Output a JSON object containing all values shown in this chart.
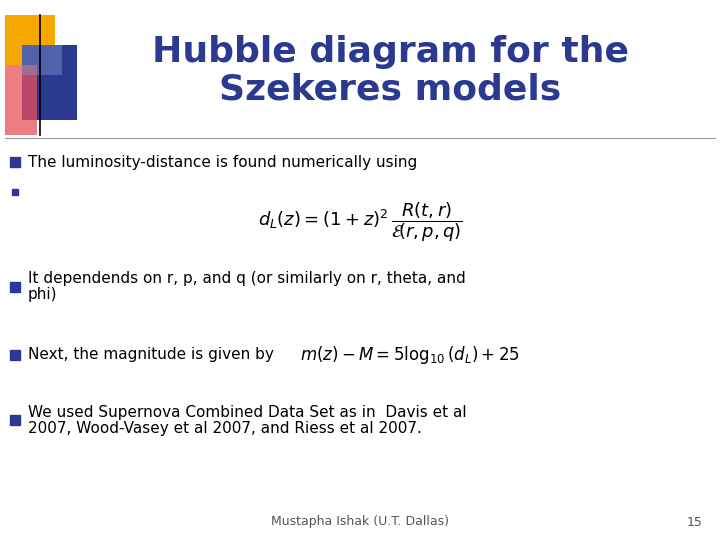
{
  "title_line1": "Hubble diagram for the",
  "title_line2": "Szekeres models",
  "title_color": "#2B3990",
  "title_fontsize": 26,
  "background_color": "#FFFFFF",
  "bullet_color": "#2B3990",
  "text_color": "#000000",
  "footer_text": "Mustapha Ishak (U.T. Dallas)",
  "footer_page": "15",
  "separator_color": "#999999",
  "logo_yellow_color": "#F5A800",
  "logo_blue_color": "#2B3990",
  "logo_red_color": "#E8505A",
  "logo_lightblue_color": "#8099CC"
}
